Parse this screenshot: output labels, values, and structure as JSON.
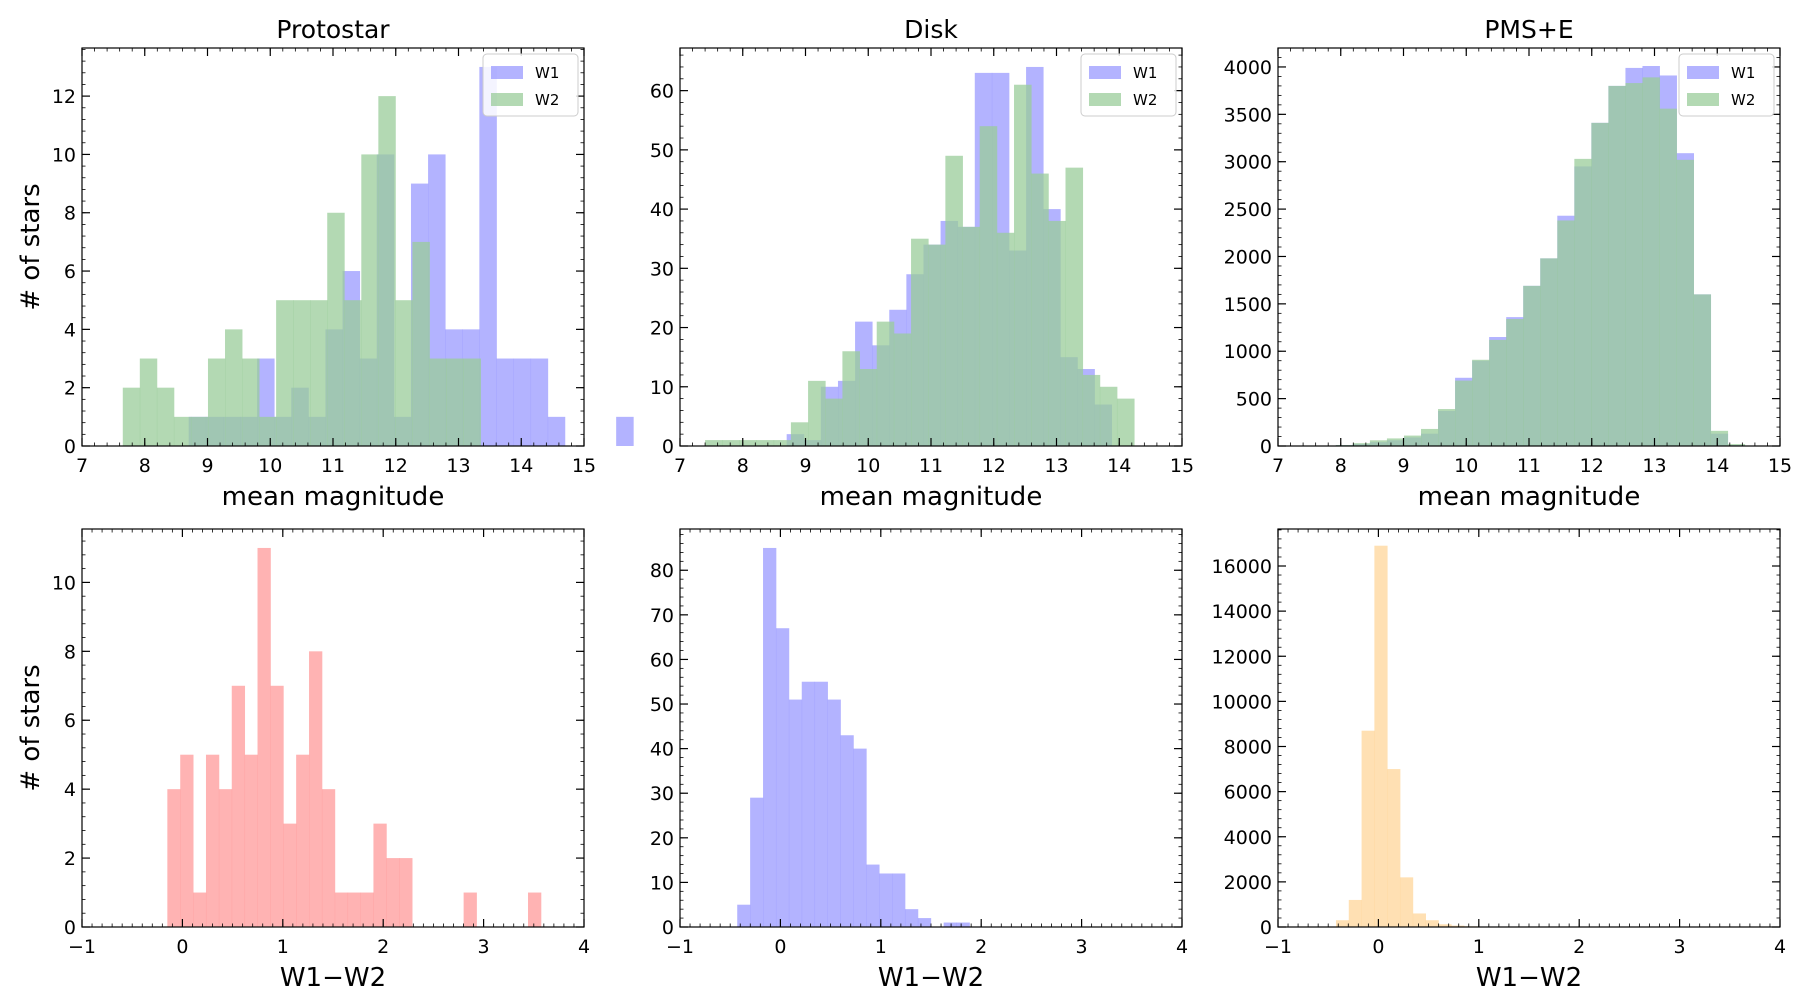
{
  "figure": {
    "ylabel": "# of stars",
    "colors": {
      "w1": "#9999ff",
      "w2": "#99cc99",
      "red": "#ff9999",
      "blue": "#9999ff",
      "orange": "#ffd699"
    }
  },
  "chart_data": [
    {
      "id": "protostar-mag",
      "type": "bar",
      "title": "Protostar",
      "xlabel": "mean magnitude",
      "ylabel": "# of stars",
      "xlim": [
        7,
        15
      ],
      "ylim": [
        0,
        13.65
      ],
      "xticks": [
        7,
        8,
        9,
        10,
        11,
        12,
        13,
        14,
        15
      ],
      "xticklabels": [
        "7",
        "8",
        "9",
        "10",
        "11",
        "12",
        "13",
        "14",
        "15"
      ],
      "yticks": [
        0,
        2,
        4,
        6,
        8,
        10,
        12
      ],
      "yticklabels": [
        "0",
        "2",
        "4",
        "6",
        "8",
        "10",
        "12"
      ],
      "legend": {
        "position": "top-right",
        "entries": [
          "W1",
          "W2"
        ]
      },
      "series": [
        {
          "name": "W1",
          "color": "#9999ff",
          "start": 8.7,
          "width": 0.2725,
          "values": [
            1,
            1,
            1,
            1,
            3,
            1,
            2,
            1,
            4,
            6,
            3,
            10,
            1,
            9,
            10,
            4,
            4,
            13,
            3,
            3,
            3,
            1,
            0,
            0,
            0,
            1
          ]
        },
        {
          "name": "W2",
          "color": "#99cc99",
          "start": 7.65,
          "width": 0.2715,
          "values": [
            2,
            3,
            2,
            1,
            1,
            3,
            4,
            3,
            1,
            5,
            5,
            5,
            8,
            5,
            10,
            12,
            5,
            7,
            3,
            3,
            3,
            0,
            0,
            0,
            0,
            0,
            0,
            0,
            0,
            0
          ]
        }
      ]
    },
    {
      "id": "disk-mag",
      "type": "bar",
      "title": "Disk",
      "xlabel": "mean magnitude",
      "ylabel": "",
      "xlim": [
        7,
        15
      ],
      "ylim": [
        0,
        67.2
      ],
      "xticks": [
        7,
        8,
        9,
        10,
        11,
        12,
        13,
        14,
        15
      ],
      "xticklabels": [
        "7",
        "8",
        "9",
        "10",
        "11",
        "12",
        "13",
        "14",
        "15"
      ],
      "yticks": [
        0,
        10,
        20,
        30,
        40,
        50,
        60
      ],
      "yticklabels": [
        "0",
        "10",
        "20",
        "30",
        "40",
        "50",
        "60"
      ],
      "legend": {
        "position": "top-right",
        "entries": [
          "W1",
          "W2"
        ]
      },
      "series": [
        {
          "name": "W1",
          "color": "#9999ff",
          "start": 8.7,
          "width": 0.2725,
          "values": [
            2,
            1,
            10,
            11,
            21,
            17,
            23,
            29,
            34,
            38,
            37,
            63,
            63,
            33,
            64,
            40,
            15,
            13,
            7
          ]
        },
        {
          "name": "W2",
          "color": "#99cc99",
          "start": 7.4,
          "width": 0.2735,
          "values": [
            1,
            1,
            1,
            1,
            1,
            4,
            11,
            8,
            16,
            13,
            21,
            19,
            35,
            34,
            49,
            37,
            54,
            36,
            61,
            46,
            38,
            47,
            12,
            10,
            8
          ]
        }
      ]
    },
    {
      "id": "pmse-mag",
      "type": "bar",
      "title": "PMS+E",
      "xlabel": "mean magnitude",
      "ylabel": "",
      "xlim": [
        7,
        15
      ],
      "ylim": [
        0,
        4200
      ],
      "xticks": [
        7,
        8,
        9,
        10,
        11,
        12,
        13,
        14,
        15
      ],
      "xticklabels": [
        "7",
        "8",
        "9",
        "10",
        "11",
        "12",
        "13",
        "14",
        "15"
      ],
      "yticks": [
        0,
        500,
        1000,
        1500,
        2000,
        2500,
        3000,
        3500,
        4000
      ],
      "yticklabels": [
        "0",
        "500",
        "1000",
        "1500",
        "2000",
        "2500",
        "3000",
        "3500",
        "4000"
      ],
      "legend": {
        "position": "top-right",
        "entries": [
          "W1",
          "W2"
        ]
      },
      "series": [
        {
          "name": "W1",
          "color": "#9999ff",
          "start": 7.65,
          "width": 0.2715,
          "values": [
            5,
            10,
            20,
            40,
            60,
            90,
            130,
            370,
            720,
            900,
            1150,
            1360,
            1690,
            1980,
            2430,
            2950,
            3410,
            3800,
            3990,
            4010,
            3910,
            3090,
            1600,
            130,
            10
          ]
        },
        {
          "name": "W2",
          "color": "#99cc99",
          "start": 7.65,
          "width": 0.2715,
          "values": [
            5,
            10,
            30,
            60,
            80,
            110,
            180,
            390,
            690,
            910,
            1120,
            1340,
            1690,
            1980,
            2380,
            3030,
            3410,
            3800,
            3830,
            3890,
            3560,
            3020,
            1600,
            160,
            20
          ]
        }
      ]
    },
    {
      "id": "protostar-color",
      "type": "bar",
      "title": "",
      "xlabel": "W1−W2",
      "ylabel": "# of stars",
      "xlim": [
        -1,
        4
      ],
      "ylim": [
        0,
        11.55
      ],
      "xticks": [
        -1,
        0,
        1,
        2,
        3,
        4
      ],
      "xticklabels": [
        "−1",
        "0",
        "1",
        "2",
        "3",
        "4"
      ],
      "yticks": [
        0,
        2,
        4,
        6,
        8,
        10
      ],
      "yticklabels": [
        "0",
        "2",
        "4",
        "6",
        "8",
        "10"
      ],
      "series": [
        {
          "name": "W1−W2",
          "color": "#ff9999",
          "start": -0.15,
          "width": 0.1283,
          "values": [
            4,
            5,
            1,
            5,
            4,
            7,
            5,
            11,
            7,
            3,
            5,
            8,
            4,
            1,
            1,
            1,
            3,
            2,
            2,
            0,
            0,
            0,
            0,
            1,
            0,
            0,
            0,
            0,
            1
          ]
        }
      ]
    },
    {
      "id": "disk-color",
      "type": "bar",
      "title": "",
      "xlabel": "W1−W2",
      "ylabel": "",
      "xlim": [
        -1,
        4
      ],
      "ylim": [
        0,
        89.25
      ],
      "xticks": [
        -1,
        0,
        1,
        2,
        3,
        4
      ],
      "xticklabels": [
        "−1",
        "0",
        "1",
        "2",
        "3",
        "4"
      ],
      "yticks": [
        0,
        10,
        20,
        30,
        40,
        50,
        60,
        70,
        80
      ],
      "yticklabels": [
        "0",
        "10",
        "20",
        "30",
        "40",
        "50",
        "60",
        "70",
        "80"
      ],
      "series": [
        {
          "name": "W1−W2",
          "color": "#9999ff",
          "start": -0.43,
          "width": 0.1285,
          "values": [
            5,
            29,
            85,
            67,
            51,
            55,
            55,
            51,
            43,
            40,
            14,
            12,
            12,
            4,
            2,
            0,
            1,
            1
          ]
        }
      ]
    },
    {
      "id": "pmse-color",
      "type": "bar",
      "title": "",
      "xlabel": "W1−W2",
      "ylabel": "",
      "xlim": [
        -1,
        4
      ],
      "ylim": [
        0,
        17640
      ],
      "xticks": [
        -1,
        0,
        1,
        2,
        3,
        4
      ],
      "xticklabels": [
        "−1",
        "0",
        "1",
        "2",
        "3",
        "4"
      ],
      "yticks": [
        0,
        2000,
        4000,
        6000,
        8000,
        10000,
        12000,
        14000,
        16000
      ],
      "yticklabels": [
        "0",
        "2000",
        "4000",
        "6000",
        "8000",
        "10000",
        "12000",
        "14000",
        "16000"
      ],
      "series": [
        {
          "name": "W1−W2",
          "color": "#ffd699",
          "start": -0.55,
          "width": 0.1275,
          "values": [
            20,
            300,
            1200,
            8700,
            16900,
            7000,
            2200,
            600,
            300,
            120,
            60,
            30,
            20,
            10,
            5
          ]
        }
      ]
    }
  ]
}
